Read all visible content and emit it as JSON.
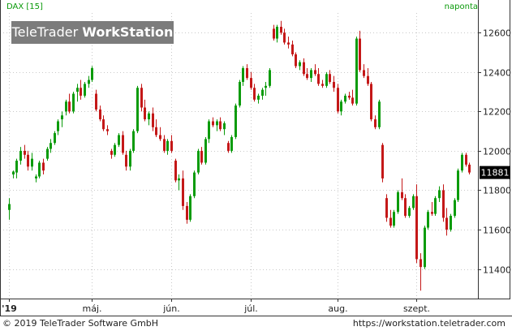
{
  "header": {
    "symbol": "DAX [15]",
    "period": "naponta"
  },
  "watermark": {
    "brand": "TeleTrader",
    "product": "WorkStation"
  },
  "footer": {
    "copyright": "© 2019 TeleTrader Software GmbH",
    "url": "https://workstation.teletrader.com"
  },
  "colors": {
    "up": "#0b9b0b",
    "down": "#c41818",
    "grid": "#c9c9c9",
    "text": "#0a9a0a"
  },
  "chart_data": {
    "type": "candlestick",
    "title": "DAX [15]",
    "period": "naponta",
    "ylim": [
      11250,
      12700
    ],
    "yticks": [
      11400,
      11600,
      11800,
      12000,
      12200,
      12400,
      12600
    ],
    "last_price": "11881",
    "xticks": [
      {
        "label": "'19",
        "index": 0
      },
      {
        "label": "máj.",
        "index": 22
      },
      {
        "label": "jún.",
        "index": 43
      },
      {
        "label": "júl.",
        "index": 64
      },
      {
        "label": "aug.",
        "index": 87
      },
      {
        "label": "szept.",
        "index": 108
      }
    ],
    "candles": [
      [
        11700,
        11760,
        11650,
        11730
      ],
      [
        11880,
        11900,
        11860,
        11895
      ],
      [
        11890,
        11960,
        11860,
        11950
      ],
      [
        11950,
        12020,
        11930,
        12000
      ],
      [
        12000,
        12030,
        11960,
        11980
      ],
      [
        11980,
        12000,
        11900,
        11920
      ],
      [
        11920,
        11990,
        11900,
        11960
      ],
      [
        11860,
        11880,
        11840,
        11870
      ],
      [
        11870,
        11950,
        11860,
        11940
      ],
      [
        11940,
        11960,
        11880,
        11900
      ],
      [
        11960,
        12020,
        11950,
        12010
      ],
      [
        12010,
        12060,
        11990,
        12040
      ],
      [
        12040,
        12100,
        12030,
        12090
      ],
      [
        12100,
        12160,
        12080,
        12150
      ],
      [
        12160,
        12200,
        12120,
        12180
      ],
      [
        12200,
        12260,
        12180,
        12250
      ],
      [
        12250,
        12290,
        12190,
        12200
      ],
      [
        12200,
        12300,
        12190,
        12290
      ],
      [
        12300,
        12340,
        12250,
        12320
      ],
      [
        12320,
        12360,
        12260,
        12280
      ],
      [
        12280,
        12350,
        12270,
        12340
      ],
      [
        12340,
        12380,
        12320,
        12360
      ],
      [
        12360,
        12430,
        12350,
        12420
      ],
      [
        12290,
        12310,
        12200,
        12210
      ],
      [
        12210,
        12230,
        12150,
        12160
      ],
      [
        12160,
        12180,
        12100,
        12110
      ],
      [
        12110,
        12130,
        12080,
        12100
      ],
      [
        12000,
        12010,
        11960,
        11980
      ],
      [
        11980,
        12040,
        11970,
        12030
      ],
      [
        12030,
        12090,
        12020,
        12080
      ],
      [
        12080,
        12100,
        11980,
        11990
      ],
      [
        11980,
        12000,
        11900,
        11920
      ],
      [
        11920,
        12010,
        11900,
        12000
      ],
      [
        12000,
        12110,
        11990,
        12100
      ],
      [
        12100,
        12330,
        12090,
        12320
      ],
      [
        12320,
        12340,
        12200,
        12220
      ],
      [
        12220,
        12260,
        12150,
        12160
      ],
      [
        12160,
        12200,
        12130,
        12190
      ],
      [
        12190,
        12220,
        12100,
        12120
      ],
      [
        12120,
        12160,
        12070,
        12080
      ],
      [
        12080,
        12120,
        12050,
        12060
      ],
      [
        12060,
        12080,
        11990,
        12000
      ],
      [
        12000,
        12060,
        11980,
        12050
      ],
      [
        12050,
        12080,
        11990,
        12000
      ],
      [
        11950,
        11960,
        11840,
        11850
      ],
      [
        11850,
        11880,
        11800,
        11860
      ],
      [
        11860,
        11900,
        11700,
        11720
      ],
      [
        11720,
        11740,
        11630,
        11650
      ],
      [
        11650,
        11780,
        11640,
        11770
      ],
      [
        11770,
        11900,
        11760,
        11890
      ],
      [
        11890,
        12010,
        11880,
        12000
      ],
      [
        12000,
        12020,
        11930,
        11940
      ],
      [
        11940,
        12070,
        11930,
        12060
      ],
      [
        12060,
        12160,
        12040,
        12150
      ],
      [
        12150,
        12170,
        12120,
        12130
      ],
      [
        12130,
        12160,
        12100,
        12150
      ],
      [
        12150,
        12170,
        12100,
        12110
      ],
      [
        12110,
        12150,
        12080,
        12140
      ],
      [
        12040,
        12050,
        11990,
        12000
      ],
      [
        12000,
        12080,
        11990,
        12070
      ],
      [
        12070,
        12240,
        12060,
        12230
      ],
      [
        12230,
        12360,
        12220,
        12350
      ],
      [
        12350,
        12430,
        12330,
        12420
      ],
      [
        12420,
        12440,
        12360,
        12370
      ],
      [
        12370,
        12400,
        12310,
        12320
      ],
      [
        12320,
        12340,
        12250,
        12260
      ],
      [
        12260,
        12290,
        12240,
        12280
      ],
      [
        12280,
        12320,
        12260,
        12310
      ],
      [
        12320,
        12350,
        12280,
        12330
      ],
      [
        12330,
        12420,
        12320,
        12410
      ],
      [
        12620,
        12640,
        12560,
        12570
      ],
      [
        12570,
        12640,
        12550,
        12630
      ],
      [
        12630,
        12660,
        12590,
        12600
      ],
      [
        12600,
        12620,
        12540,
        12550
      ],
      [
        12550,
        12580,
        12520,
        12540
      ],
      [
        12540,
        12560,
        12480,
        12490
      ],
      [
        12490,
        12500,
        12420,
        12430
      ],
      [
        12430,
        12460,
        12410,
        12450
      ],
      [
        12450,
        12470,
        12380,
        12390
      ],
      [
        12390,
        12420,
        12360,
        12370
      ],
      [
        12370,
        12420,
        12350,
        12410
      ],
      [
        12410,
        12440,
        12380,
        12390
      ],
      [
        12390,
        12420,
        12330,
        12340
      ],
      [
        12340,
        12360,
        12320,
        12330
      ],
      [
        12330,
        12400,
        12320,
        12390
      ],
      [
        12390,
        12410,
        12340,
        12350
      ],
      [
        12350,
        12380,
        12300,
        12320
      ],
      [
        12320,
        12340,
        12190,
        12200
      ],
      [
        12200,
        12260,
        12180,
        12250
      ],
      [
        12250,
        12290,
        12240,
        12280
      ],
      [
        12280,
        12300,
        12260,
        12270
      ],
      [
        12270,
        12310,
        12230,
        12240
      ],
      [
        12240,
        12580,
        12230,
        12570
      ],
      [
        12570,
        12610,
        12400,
        12410
      ],
      [
        12410,
        12440,
        12370,
        12380
      ],
      [
        12380,
        12420,
        12330,
        12340
      ],
      [
        12340,
        12350,
        12150,
        12160
      ],
      [
        12160,
        12180,
        12110,
        12120
      ],
      [
        12120,
        12260,
        12110,
        12250
      ],
      [
        12030,
        12040,
        11840,
        11860
      ],
      [
        11760,
        11780,
        11640,
        11660
      ],
      [
        11660,
        11700,
        11610,
        11620
      ],
      [
        11620,
        11700,
        11610,
        11690
      ],
      [
        11690,
        11800,
        11680,
        11790
      ],
      [
        11790,
        11860,
        11750,
        11760
      ],
      [
        11760,
        11780,
        11660,
        11670
      ],
      [
        11670,
        11720,
        11660,
        11710
      ],
      [
        11710,
        11780,
        11700,
        11770
      ],
      [
        11770,
        11830,
        11430,
        11450
      ],
      [
        11450,
        11480,
        11290,
        11410
      ],
      [
        11410,
        11620,
        11400,
        11610
      ],
      [
        11610,
        11700,
        11600,
        11690
      ],
      [
        11690,
        11740,
        11670,
        11680
      ],
      [
        11680,
        11770,
        11670,
        11760
      ],
      [
        11760,
        11820,
        11740,
        11800
      ],
      [
        11800,
        11830,
        11640,
        11660
      ],
      [
        11660,
        11710,
        11570,
        11600
      ],
      [
        11600,
        11680,
        11590,
        11670
      ],
      [
        11670,
        11760,
        11660,
        11750
      ],
      [
        11750,
        11910,
        11740,
        11900
      ],
      [
        11900,
        11990,
        11890,
        11980
      ],
      [
        11980,
        11990,
        11920,
        11930
      ],
      [
        11930,
        11940,
        11880,
        11890
      ]
    ]
  }
}
